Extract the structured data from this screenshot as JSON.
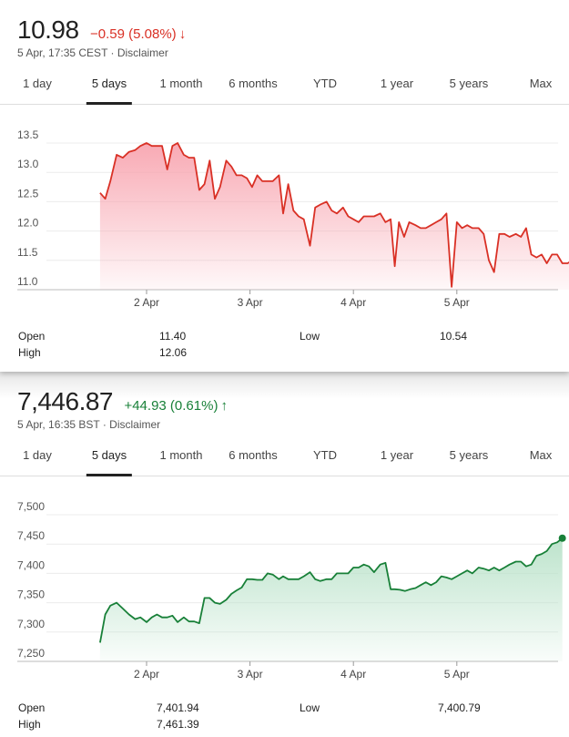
{
  "tabs": [
    "1 day",
    "5 days",
    "1 month",
    "6 months",
    "YTD",
    "1 year",
    "5 years",
    "Max"
  ],
  "active_tab": "5 days",
  "colors": {
    "down": "#d93025",
    "up": "#188038",
    "down_fill": "#f8a5b0",
    "up_fill": "#b9e2c9"
  },
  "quote1": {
    "price": "10.98",
    "change": "−0.59 (5.08%)",
    "arrow": "↓",
    "timestamp": "5 Apr, 17:35 CEST · Disclaimer",
    "stats": {
      "open_label": "Open",
      "open": "11.40",
      "high_label": "High",
      "high": "12.06",
      "low_label": "Low",
      "low": "10.54"
    }
  },
  "quote2": {
    "price": "7,446.87",
    "change": "+44.93 (0.61%)",
    "arrow": "↑",
    "timestamp": "5 Apr, 16:35 BST · Disclaimer",
    "stats": {
      "open_label": "Open",
      "open": "7,401.94",
      "high_label": "High",
      "high": "7,461.39",
      "low_label": "Low",
      "low": "7,400.79"
    }
  },
  "chart_data": [
    {
      "type": "area",
      "title": "",
      "xlabel": "",
      "ylabel": "",
      "ylim": [
        11.0,
        13.5
      ],
      "yticks": [
        "13.5",
        "13.0",
        "12.5",
        "12.0",
        "11.5",
        "11.0"
      ],
      "xticks": [
        "2 Apr",
        "3 Apr",
        "4 Apr",
        "5 Apr"
      ],
      "x_range": [
        1.55,
        5.96
      ],
      "grid": true,
      "series": [
        {
          "values": [
            [
              1.55,
              12.65
            ],
            [
              1.6,
              12.55
            ],
            [
              1.65,
              12.85
            ],
            [
              1.71,
              13.3
            ],
            [
              1.77,
              13.25
            ],
            [
              1.83,
              13.35
            ],
            [
              1.89,
              13.38
            ],
            [
              1.94,
              13.45
            ],
            [
              2.0,
              13.5
            ],
            [
              2.05,
              13.45
            ],
            [
              2.1,
              13.45
            ],
            [
              2.15,
              13.45
            ],
            [
              2.2,
              13.05
            ],
            [
              2.25,
              13.45
            ],
            [
              2.3,
              13.5
            ],
            [
              2.36,
              13.3
            ],
            [
              2.41,
              13.25
            ],
            [
              2.46,
              13.25
            ],
            [
              2.51,
              12.7
            ],
            [
              2.56,
              12.8
            ],
            [
              2.61,
              13.2
            ],
            [
              2.66,
              12.55
            ],
            [
              2.71,
              12.75
            ],
            [
              2.77,
              13.2
            ],
            [
              2.82,
              13.1
            ],
            [
              2.87,
              12.95
            ],
            [
              2.92,
              12.95
            ],
            [
              2.97,
              12.9
            ],
            [
              3.02,
              12.75
            ],
            [
              3.07,
              12.95
            ],
            [
              3.12,
              12.85
            ],
            [
              3.17,
              12.85
            ],
            [
              3.22,
              12.85
            ],
            [
              3.28,
              12.95
            ],
            [
              3.32,
              12.3
            ],
            [
              3.37,
              12.8
            ],
            [
              3.42,
              12.35
            ],
            [
              3.47,
              12.25
            ],
            [
              3.52,
              12.2
            ],
            [
              3.58,
              11.75
            ],
            [
              3.63,
              12.4
            ],
            [
              3.68,
              12.45
            ],
            [
              3.74,
              12.5
            ],
            [
              3.79,
              12.35
            ],
            [
              3.84,
              12.3
            ],
            [
              3.9,
              12.4
            ],
            [
              3.95,
              12.25
            ],
            [
              4.0,
              12.2
            ],
            [
              4.05,
              12.15
            ],
            [
              4.1,
              12.25
            ],
            [
              4.15,
              12.25
            ],
            [
              4.2,
              12.25
            ],
            [
              4.26,
              12.3
            ],
            [
              4.31,
              12.15
            ],
            [
              4.36,
              12.2
            ],
            [
              4.4,
              11.4
            ],
            [
              4.44,
              12.15
            ],
            [
              4.49,
              11.9
            ],
            [
              4.54,
              12.15
            ],
            [
              4.6,
              12.1
            ],
            [
              4.65,
              12.05
            ],
            [
              4.7,
              12.05
            ],
            [
              4.75,
              12.1
            ],
            [
              4.8,
              12.15
            ],
            [
              4.85,
              12.2
            ],
            [
              4.9,
              12.3
            ],
            [
              4.95,
              11.05
            ],
            [
              5.0,
              12.15
            ],
            [
              5.05,
              12.05
            ],
            [
              5.1,
              12.1
            ],
            [
              5.15,
              12.05
            ],
            [
              5.21,
              12.05
            ],
            [
              5.26,
              11.95
            ],
            [
              5.31,
              11.5
            ],
            [
              5.36,
              11.3
            ],
            [
              5.41,
              11.95
            ],
            [
              5.46,
              11.95
            ],
            [
              5.51,
              11.9
            ],
            [
              5.57,
              11.95
            ],
            [
              5.62,
              11.9
            ],
            [
              5.67,
              12.05
            ],
            [
              5.72,
              11.6
            ],
            [
              5.77,
              11.55
            ],
            [
              5.82,
              11.6
            ],
            [
              5.87,
              11.45
            ],
            [
              5.92,
              11.6
            ],
            [
              5.97,
              11.6
            ],
            [
              6.02,
              11.45
            ],
            [
              6.07,
              11.45
            ],
            [
              6.12,
              11.5
            ],
            [
              6.17,
              11.15
            ]
          ]
        }
      ]
    },
    {
      "type": "area",
      "title": "",
      "xlabel": "",
      "ylabel": "",
      "ylim": [
        7250,
        7500
      ],
      "yticks": [
        "7,500",
        "7,450",
        "7,400",
        "7,350",
        "7,300",
        "7,250"
      ],
      "xticks": [
        "2 Apr",
        "3 Apr",
        "4 Apr",
        "5 Apr"
      ],
      "x_range": [
        1.55,
        5.96
      ],
      "grid": true,
      "series": [
        {
          "values": [
            [
              1.55,
              7282
            ],
            [
              1.6,
              7330
            ],
            [
              1.65,
              7345
            ],
            [
              1.71,
              7350
            ],
            [
              1.77,
              7340
            ],
            [
              1.83,
              7330
            ],
            [
              1.89,
              7322
            ],
            [
              1.94,
              7325
            ],
            [
              2.0,
              7317
            ],
            [
              2.05,
              7325
            ],
            [
              2.1,
              7330
            ],
            [
              2.15,
              7325
            ],
            [
              2.2,
              7325
            ],
            [
              2.25,
              7328
            ],
            [
              2.3,
              7317
            ],
            [
              2.36,
              7325
            ],
            [
              2.41,
              7318
            ],
            [
              2.46,
              7318
            ],
            [
              2.51,
              7315
            ],
            [
              2.56,
              7358
            ],
            [
              2.61,
              7358
            ],
            [
              2.66,
              7350
            ],
            [
              2.71,
              7348
            ],
            [
              2.77,
              7355
            ],
            [
              2.82,
              7365
            ],
            [
              2.87,
              7371
            ],
            [
              2.92,
              7376
            ],
            [
              2.97,
              7390
            ],
            [
              3.02,
              7390
            ],
            [
              3.07,
              7389
            ],
            [
              3.12,
              7389
            ],
            [
              3.17,
              7400
            ],
            [
              3.22,
              7398
            ],
            [
              3.28,
              7390
            ],
            [
              3.32,
              7395
            ],
            [
              3.37,
              7390
            ],
            [
              3.42,
              7390
            ],
            [
              3.47,
              7390
            ],
            [
              3.52,
              7395
            ],
            [
              3.58,
              7402
            ],
            [
              3.63,
              7390
            ],
            [
              3.68,
              7387
            ],
            [
              3.74,
              7390
            ],
            [
              3.79,
              7390
            ],
            [
              3.84,
              7400
            ],
            [
              3.9,
              7400
            ],
            [
              3.95,
              7400
            ],
            [
              4.0,
              7410
            ],
            [
              4.05,
              7410
            ],
            [
              4.1,
              7415
            ],
            [
              4.15,
              7412
            ],
            [
              4.2,
              7402
            ],
            [
              4.26,
              7415
            ],
            [
              4.31,
              7418
            ],
            [
              4.36,
              7373
            ],
            [
              4.4,
              7373
            ],
            [
              4.45,
              7372
            ],
            [
              4.5,
              7370
            ],
            [
              4.55,
              7373
            ],
            [
              4.6,
              7375
            ],
            [
              4.65,
              7380
            ],
            [
              4.7,
              7385
            ],
            [
              4.75,
              7380
            ],
            [
              4.8,
              7385
            ],
            [
              4.85,
              7395
            ],
            [
              4.9,
              7393
            ],
            [
              4.95,
              7390
            ],
            [
              5.0,
              7395
            ],
            [
              5.05,
              7400
            ],
            [
              5.1,
              7405
            ],
            [
              5.15,
              7400
            ],
            [
              5.21,
              7410
            ],
            [
              5.26,
              7408
            ],
            [
              5.31,
              7405
            ],
            [
              5.36,
              7410
            ],
            [
              5.41,
              7405
            ],
            [
              5.46,
              7410
            ],
            [
              5.51,
              7415
            ],
            [
              5.57,
              7420
            ],
            [
              5.62,
              7420
            ],
            [
              5.67,
              7412
            ],
            [
              5.72,
              7415
            ],
            [
              5.77,
              7430
            ],
            [
              5.82,
              7433
            ],
            [
              5.87,
              7438
            ],
            [
              5.92,
              7450
            ],
            [
              5.97,
              7453
            ],
            [
              6.02,
              7460
            ]
          ]
        }
      ]
    }
  ]
}
